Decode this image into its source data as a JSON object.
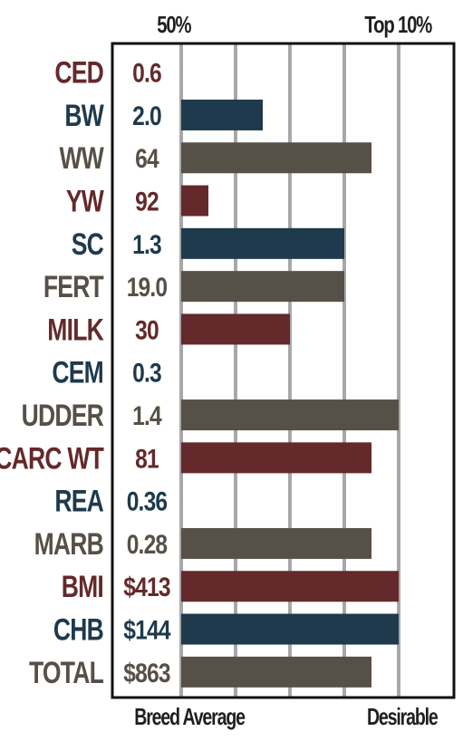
{
  "header": {
    "left_label": "50%",
    "right_label": "Top 10%"
  },
  "footer": {
    "left_label": "Breed Average",
    "right_label": "Desirable"
  },
  "colors": {
    "red": "#64292a",
    "blue": "#1e3a4c",
    "gray": "#565048",
    "grid": "#a9a7ab",
    "frame": "#111111"
  },
  "chart_data": {
    "type": "bar",
    "orientation": "horizontal",
    "scale": "percentile rank, 0 = breed average (50%), 4 = top 10%",
    "xlim": [
      0,
      5
    ],
    "grid": true,
    "categories": [
      "CED",
      "BW",
      "WW",
      "YW",
      "SC",
      "FERT",
      "MILK",
      "CEM",
      "UDDER",
      "CARC WT",
      "REA",
      "MARB",
      "BMI",
      "CHB",
      "TOTAL"
    ],
    "value_labels": [
      "0.6",
      "2.0",
      "64",
      "92",
      "1.3",
      "19.0",
      "30",
      "0.3",
      "1.4",
      "81",
      "0.36",
      "0.28",
      "$413",
      "$144",
      "$863"
    ],
    "values": [
      0,
      1.5,
      3.5,
      0.5,
      3.0,
      3.0,
      2.0,
      0,
      4.0,
      3.5,
      0,
      3.5,
      4.0,
      4.0,
      3.5
    ],
    "bar_colors": [
      "red",
      "blue",
      "gray",
      "red",
      "blue",
      "gray",
      "red",
      "blue",
      "gray",
      "red",
      "blue",
      "gray",
      "red",
      "blue",
      "gray"
    ]
  }
}
